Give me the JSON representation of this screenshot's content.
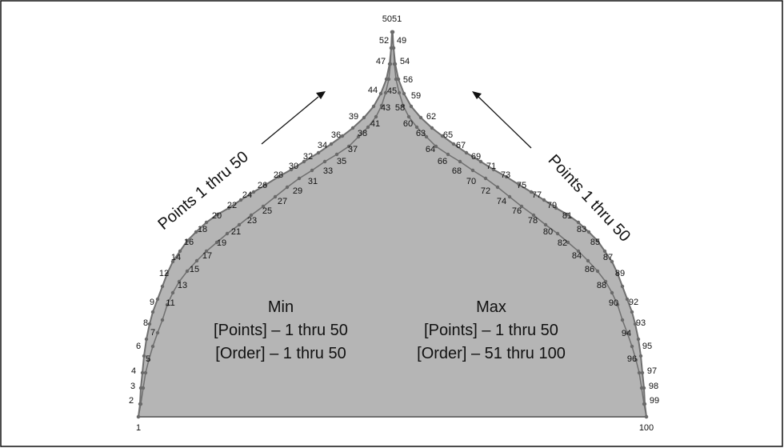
{
  "colors": {
    "fill": "#b5b5b5",
    "outline": "#6f6f6f",
    "frame": "#111111",
    "text": "#111111"
  },
  "diagram": {
    "point_labels": [
      "1",
      "2",
      "3",
      "4",
      "5",
      "6",
      "7",
      "8",
      "9",
      "11",
      "12",
      "13",
      "14",
      "15",
      "16",
      "17",
      "18",
      "19",
      "20",
      "21",
      "22",
      "23",
      "24",
      "25",
      "26",
      "27",
      "28",
      "29",
      "30",
      "31",
      "32",
      "33",
      "34",
      "35",
      "36",
      "37",
      "38",
      "39",
      "41",
      "43",
      "44",
      "45",
      "47",
      "49",
      "5051",
      "52",
      "54",
      "56",
      "58",
      "59",
      "60",
      "62",
      "63",
      "64",
      "65",
      "66",
      "67",
      "68",
      "69",
      "70",
      "71",
      "72",
      "73",
      "74",
      "75",
      "76",
      "77",
      "78",
      "79",
      "80",
      "81",
      "82",
      "83",
      "84",
      "85",
      "86",
      "87",
      "88",
      "89",
      "90",
      "92",
      "93",
      "94",
      "95",
      "96",
      "97",
      "98",
      "99",
      "100"
    ],
    "left_arrow_label": "Points 1 thru 50",
    "right_arrow_label": "Points 1 thru 50",
    "min_block": {
      "title": "Min",
      "points": "[Points] – 1 thru 50",
      "order": "[Order] – 1 thru 50"
    },
    "max_block": {
      "title": "Max",
      "points": "[Points] – 1 thru 50",
      "order": "[Order] – 51 thru 100"
    }
  }
}
